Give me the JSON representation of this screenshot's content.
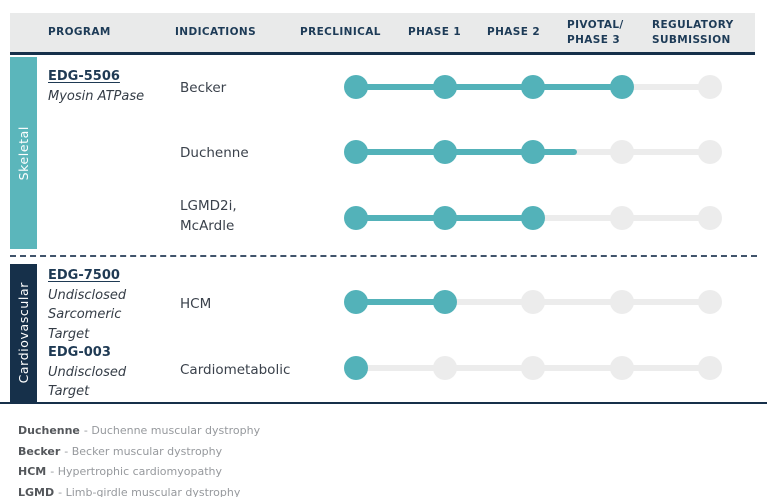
{
  "colors": {
    "teal": "#53b2b9",
    "navy": "#16304a",
    "track_gray": "#ececec",
    "header_bg": "#e9eaea"
  },
  "header": {
    "columns": [
      {
        "label": "PROGRAM"
      },
      {
        "label": "INDICATIONS"
      },
      {
        "label": "PRECLINICAL"
      },
      {
        "label": "PHASE 1"
      },
      {
        "label": "PHASE 2"
      },
      {
        "line1": "PIVOTAL/",
        "line2": "PHASE 3"
      },
      {
        "line1": "REGULATORY",
        "line2": "SUBMISSION"
      }
    ]
  },
  "stages": [
    "PRECLINICAL",
    "PHASE 1",
    "PHASE 2",
    "PIVOTAL/PHASE 3",
    "REGULATORY SUBMISSION"
  ],
  "sections": [
    {
      "name": "Skeletal",
      "color": "#5bb6bb",
      "programs": [
        {
          "id": "EDG-5506",
          "target": "Myosin ATPase",
          "rows": [
            {
              "indication": "Becker",
              "dots_complete": 4,
              "progress_stages": 3
            },
            {
              "indication": "Duchenne",
              "dots_complete": 3,
              "progress_stages": 2.5
            },
            {
              "indication": "LGMD2i, McArdle",
              "dots_complete": 3,
              "progress_stages": 2
            }
          ]
        }
      ]
    },
    {
      "name": "Cardiovascular",
      "color": "#16304a",
      "programs": [
        {
          "id": "EDG-7500",
          "target": "Undisclosed Sarcomeric Target",
          "rows": [
            {
              "indication": "HCM",
              "dots_complete": 2,
              "progress_stages": 1
            }
          ]
        },
        {
          "id": "EDG-003",
          "target": "Undisclosed Target",
          "rows": [
            {
              "indication": "Cardiometabolic",
              "dots_complete": 1,
              "progress_stages": 0
            }
          ]
        }
      ]
    }
  ],
  "chart_data": {
    "type": "table",
    "columns": [
      "PROGRAM",
      "INDICATIONS",
      "PRECLINICAL",
      "PHASE 1",
      "PHASE 2",
      "PIVOTAL/PHASE 3",
      "REGULATORY SUBMISSION"
    ],
    "rows": [
      {
        "program": "EDG-5506 Myosin ATPase",
        "indication": "Becker",
        "furthest_stage": "PIVOTAL/PHASE 3"
      },
      {
        "program": "EDG-5506 Myosin ATPase",
        "indication": "Duchenne",
        "furthest_stage": "PHASE 2, advancing toward PIVOTAL/PHASE 3"
      },
      {
        "program": "EDG-5506 Myosin ATPase",
        "indication": "LGMD2i, McArdle",
        "furthest_stage": "PHASE 2"
      },
      {
        "program": "EDG-7500 Undisclosed Sarcomeric Target",
        "indication": "HCM",
        "furthest_stage": "PHASE 1"
      },
      {
        "program": "EDG-003 Undisclosed Target",
        "indication": "Cardiometabolic",
        "furthest_stage": "PRECLINICAL"
      }
    ]
  },
  "legend": [
    {
      "term": "Duchenne",
      "definition": "- Duchenne muscular dystrophy"
    },
    {
      "term": "Becker",
      "definition": "- Becker muscular dystrophy"
    },
    {
      "term": "HCM",
      "definition": "- Hypertrophic cardiomyopathy"
    },
    {
      "term": "LGMD",
      "definition": "- Limb-girdle muscular dystrophy"
    }
  ]
}
